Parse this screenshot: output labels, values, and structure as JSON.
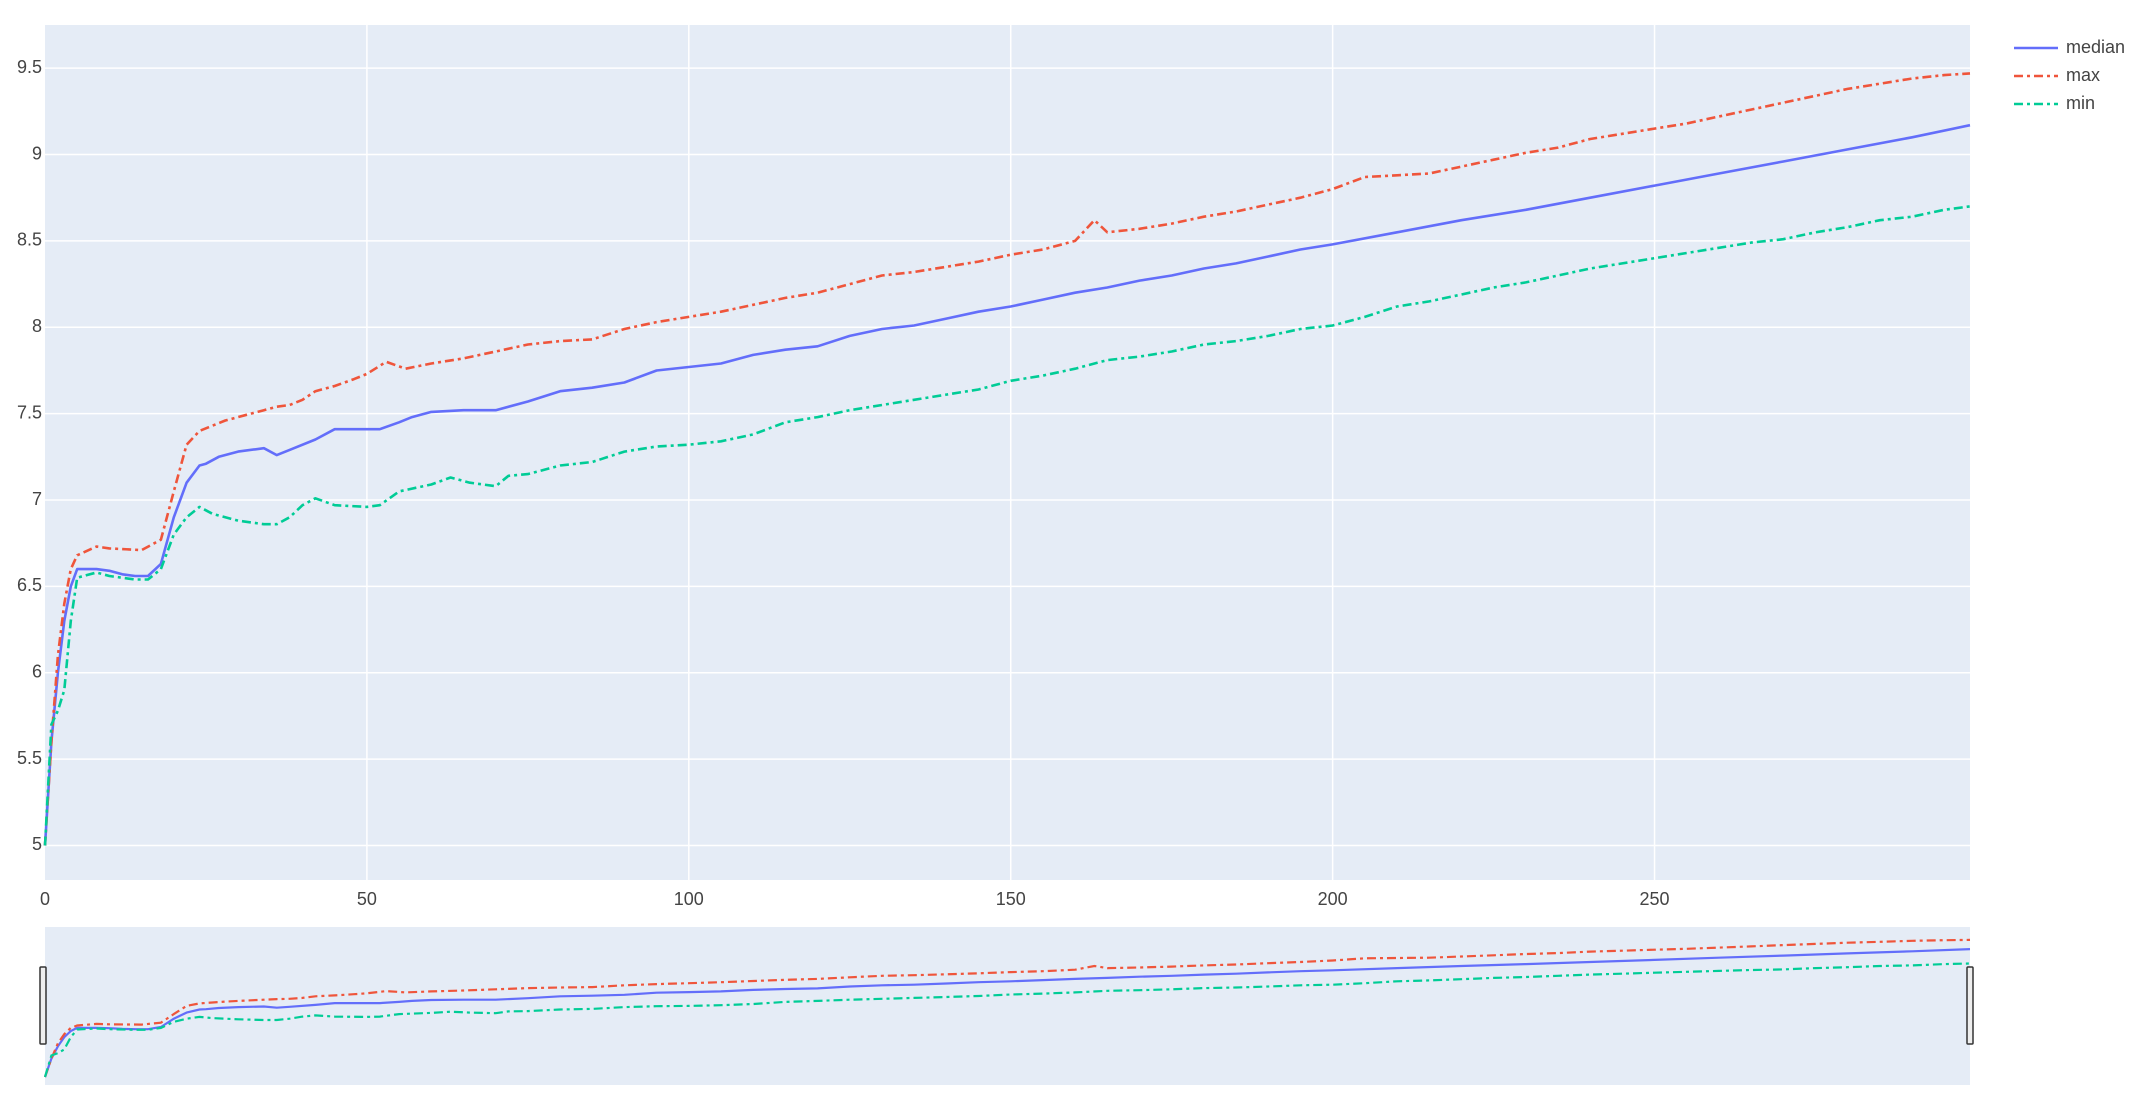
{
  "chart_data": {
    "type": "line",
    "title": "",
    "xlabel": "",
    "ylabel": "",
    "xlim": [
      0,
      299
    ],
    "ylim": [
      4.8,
      9.75
    ],
    "x_ticks": [
      0,
      50,
      100,
      150,
      200,
      250
    ],
    "x_tick_labels": [
      "0",
      "50",
      "100",
      "150",
      "200",
      "250"
    ],
    "y_ticks": [
      5,
      5.5,
      6,
      6.5,
      7,
      7.5,
      8,
      8.5,
      9,
      9.5
    ],
    "y_tick_labels": [
      "5",
      "5.5",
      "6",
      "6.5",
      "7",
      "7.5",
      "8",
      "8.5",
      "9",
      "9.5"
    ],
    "grid": true,
    "legend_position": "top-right",
    "range_slider": true,
    "colors": {
      "plot_background": "#e5ecf6",
      "grid": "#ffffff",
      "median": "#636efa",
      "max": "#ef553b",
      "min": "#00cc96"
    },
    "series": [
      {
        "name": "median",
        "dash": "solid",
        "points": [
          [
            0,
            5.0
          ],
          [
            1,
            5.6
          ],
          [
            2,
            6.0
          ],
          [
            3,
            6.3
          ],
          [
            4,
            6.5
          ],
          [
            5,
            6.6
          ],
          [
            8,
            6.6
          ],
          [
            10,
            6.59
          ],
          [
            12,
            6.57
          ],
          [
            14,
            6.56
          ],
          [
            16,
            6.56
          ],
          [
            18,
            6.63
          ],
          [
            20,
            6.9
          ],
          [
            22,
            7.1
          ],
          [
            24,
            7.2
          ],
          [
            25,
            7.21
          ],
          [
            27,
            7.25
          ],
          [
            30,
            7.28
          ],
          [
            34,
            7.3
          ],
          [
            36,
            7.26
          ],
          [
            38,
            7.29
          ],
          [
            42,
            7.35
          ],
          [
            45,
            7.41
          ],
          [
            50,
            7.41
          ],
          [
            52,
            7.41
          ],
          [
            55,
            7.45
          ],
          [
            57,
            7.48
          ],
          [
            60,
            7.51
          ],
          [
            65,
            7.52
          ],
          [
            70,
            7.52
          ],
          [
            75,
            7.57
          ],
          [
            80,
            7.63
          ],
          [
            85,
            7.65
          ],
          [
            90,
            7.68
          ],
          [
            95,
            7.75
          ],
          [
            100,
            7.77
          ],
          [
            105,
            7.79
          ],
          [
            110,
            7.84
          ],
          [
            115,
            7.87
          ],
          [
            120,
            7.89
          ],
          [
            125,
            7.95
          ],
          [
            130,
            7.99
          ],
          [
            135,
            8.01
          ],
          [
            140,
            8.05
          ],
          [
            145,
            8.09
          ],
          [
            150,
            8.12
          ],
          [
            155,
            8.16
          ],
          [
            160,
            8.2
          ],
          [
            165,
            8.23
          ],
          [
            170,
            8.27
          ],
          [
            175,
            8.3
          ],
          [
            180,
            8.34
          ],
          [
            185,
            8.37
          ],
          [
            190,
            8.41
          ],
          [
            195,
            8.45
          ],
          [
            200,
            8.48
          ],
          [
            210,
            8.55
          ],
          [
            220,
            8.62
          ],
          [
            230,
            8.68
          ],
          [
            240,
            8.75
          ],
          [
            250,
            8.82
          ],
          [
            260,
            8.89
          ],
          [
            270,
            8.96
          ],
          [
            280,
            9.03
          ],
          [
            290,
            9.1
          ],
          [
            299,
            9.17
          ]
        ]
      },
      {
        "name": "max",
        "dash": "dashdot",
        "points": [
          [
            0,
            5.0
          ],
          [
            1,
            5.6
          ],
          [
            2,
            6.1
          ],
          [
            3,
            6.4
          ],
          [
            4,
            6.6
          ],
          [
            5,
            6.68
          ],
          [
            8,
            6.73
          ],
          [
            10,
            6.72
          ],
          [
            15,
            6.71
          ],
          [
            18,
            6.77
          ],
          [
            20,
            7.05
          ],
          [
            22,
            7.32
          ],
          [
            24,
            7.4
          ],
          [
            26,
            7.43
          ],
          [
            28,
            7.46
          ],
          [
            30,
            7.48
          ],
          [
            32,
            7.5
          ],
          [
            34,
            7.52
          ],
          [
            36,
            7.54
          ],
          [
            38,
            7.55
          ],
          [
            40,
            7.58
          ],
          [
            42,
            7.63
          ],
          [
            45,
            7.66
          ],
          [
            48,
            7.7
          ],
          [
            50,
            7.73
          ],
          [
            53,
            7.8
          ],
          [
            56,
            7.76
          ],
          [
            60,
            7.79
          ],
          [
            65,
            7.82
          ],
          [
            70,
            7.86
          ],
          [
            75,
            7.9
          ],
          [
            80,
            7.92
          ],
          [
            85,
            7.93
          ],
          [
            90,
            7.99
          ],
          [
            95,
            8.03
          ],
          [
            100,
            8.06
          ],
          [
            105,
            8.09
          ],
          [
            110,
            8.13
          ],
          [
            115,
            8.17
          ],
          [
            120,
            8.2
          ],
          [
            125,
            8.25
          ],
          [
            130,
            8.3
          ],
          [
            135,
            8.32
          ],
          [
            140,
            8.35
          ],
          [
            145,
            8.38
          ],
          [
            150,
            8.42
          ],
          [
            155,
            8.45
          ],
          [
            160,
            8.5
          ],
          [
            163,
            8.62
          ],
          [
            165,
            8.55
          ],
          [
            170,
            8.57
          ],
          [
            175,
            8.6
          ],
          [
            180,
            8.64
          ],
          [
            185,
            8.67
          ],
          [
            190,
            8.71
          ],
          [
            195,
            8.75
          ],
          [
            200,
            8.8
          ],
          [
            205,
            8.87
          ],
          [
            210,
            8.88
          ],
          [
            215,
            8.89
          ],
          [
            220,
            8.93
          ],
          [
            225,
            8.97
          ],
          [
            230,
            9.01
          ],
          [
            235,
            9.04
          ],
          [
            240,
            9.09
          ],
          [
            245,
            9.12
          ],
          [
            250,
            9.15
          ],
          [
            255,
            9.18
          ],
          [
            260,
            9.22
          ],
          [
            265,
            9.26
          ],
          [
            270,
            9.3
          ],
          [
            275,
            9.34
          ],
          [
            280,
            9.38
          ],
          [
            285,
            9.41
          ],
          [
            290,
            9.44
          ],
          [
            295,
            9.46
          ],
          [
            299,
            9.47
          ]
        ]
      },
      {
        "name": "min",
        "dash": "dashdot",
        "points": [
          [
            0,
            5.0
          ],
          [
            1,
            5.7
          ],
          [
            2,
            5.78
          ],
          [
            3,
            5.9
          ],
          [
            4,
            6.3
          ],
          [
            5,
            6.55
          ],
          [
            8,
            6.58
          ],
          [
            10,
            6.56
          ],
          [
            14,
            6.54
          ],
          [
            16,
            6.54
          ],
          [
            18,
            6.6
          ],
          [
            20,
            6.8
          ],
          [
            22,
            6.9
          ],
          [
            24,
            6.96
          ],
          [
            26,
            6.92
          ],
          [
            30,
            6.88
          ],
          [
            34,
            6.86
          ],
          [
            36,
            6.86
          ],
          [
            38,
            6.9
          ],
          [
            40,
            6.97
          ],
          [
            42,
            7.01
          ],
          [
            45,
            6.97
          ],
          [
            50,
            6.96
          ],
          [
            52,
            6.97
          ],
          [
            55,
            7.05
          ],
          [
            60,
            7.09
          ],
          [
            63,
            7.13
          ],
          [
            66,
            7.1
          ],
          [
            70,
            7.08
          ],
          [
            72,
            7.14
          ],
          [
            75,
            7.15
          ],
          [
            80,
            7.2
          ],
          [
            85,
            7.22
          ],
          [
            90,
            7.28
          ],
          [
            95,
            7.31
          ],
          [
            100,
            7.32
          ],
          [
            105,
            7.34
          ],
          [
            110,
            7.38
          ],
          [
            115,
            7.45
          ],
          [
            120,
            7.48
          ],
          [
            125,
            7.52
          ],
          [
            130,
            7.55
          ],
          [
            135,
            7.58
          ],
          [
            140,
            7.61
          ],
          [
            145,
            7.64
          ],
          [
            150,
            7.69
          ],
          [
            155,
            7.72
          ],
          [
            160,
            7.76
          ],
          [
            165,
            7.81
          ],
          [
            170,
            7.83
          ],
          [
            175,
            7.86
          ],
          [
            180,
            7.9
          ],
          [
            185,
            7.92
          ],
          [
            190,
            7.95
          ],
          [
            195,
            7.99
          ],
          [
            200,
            8.01
          ],
          [
            205,
            8.06
          ],
          [
            210,
            8.12
          ],
          [
            215,
            8.15
          ],
          [
            220,
            8.19
          ],
          [
            225,
            8.23
          ],
          [
            230,
            8.26
          ],
          [
            235,
            8.3
          ],
          [
            240,
            8.34
          ],
          [
            245,
            8.37
          ],
          [
            250,
            8.4
          ],
          [
            255,
            8.43
          ],
          [
            260,
            8.46
          ],
          [
            265,
            8.49
          ],
          [
            270,
            8.51
          ],
          [
            275,
            8.55
          ],
          [
            280,
            8.58
          ],
          [
            285,
            8.62
          ],
          [
            290,
            8.64
          ],
          [
            295,
            8.68
          ],
          [
            299,
            8.7
          ]
        ]
      }
    ]
  }
}
